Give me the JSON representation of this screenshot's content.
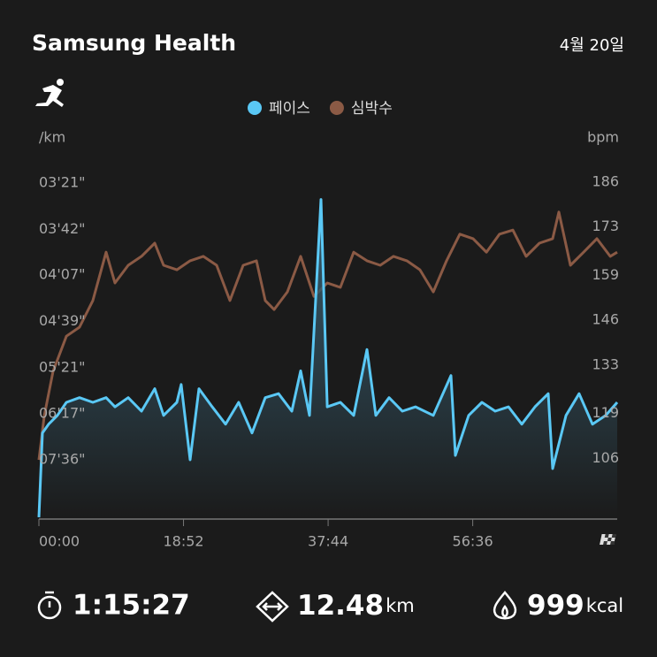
{
  "header": {
    "title": "Samsung Health",
    "date": "4월 20일"
  },
  "chart_data": {
    "type": "line",
    "y_label": "/km",
    "y2_label": "bpm",
    "xlim": [
      0,
      4527
    ],
    "xticks": [
      {
        "value": 0,
        "label": "00:00"
      },
      {
        "value": 1132,
        "label": "18:52"
      },
      {
        "value": 2264,
        "label": "37:44"
      },
      {
        "value": 3396,
        "label": "56:36"
      }
    ],
    "ylim": [
      619,
      184
    ],
    "y_scale": "reciprocal",
    "yticks": [
      {
        "value": 201,
        "label": "03'21\""
      },
      {
        "value": 222,
        "label": "03'42\""
      },
      {
        "value": 247,
        "label": "04'07\""
      },
      {
        "value": 279,
        "label": "04'39\""
      },
      {
        "value": 321,
        "label": "05'21\""
      },
      {
        "value": 377,
        "label": "06'17\""
      },
      {
        "value": 456,
        "label": "07'36\""
      }
    ],
    "y2lim": [
      89,
      199
    ],
    "y2ticks": [
      186,
      173,
      159,
      146,
      133,
      119,
      106
    ],
    "series": [
      {
        "name": "페이스",
        "color": "#5ac8f5",
        "fill": true,
        "x": [
          0,
          28,
          76,
          145,
          215,
          318,
          422,
          526,
          595,
          699,
          803,
          907,
          976,
          1080,
          1114,
          1184,
          1253,
          1357,
          1461,
          1564,
          1668,
          1772,
          1876,
          1980,
          2049,
          2118,
          2208,
          2257,
          2360,
          2464,
          2568,
          2637,
          2741,
          2845,
          2949,
          3087,
          3226,
          3260,
          3364,
          3468,
          3572,
          3676,
          3780,
          3883,
          3987,
          4022,
          4126,
          4229,
          4333,
          4437,
          4527
        ],
        "values": [
          619,
          406,
          392,
          379,
          361,
          355,
          361,
          355,
          367,
          355,
          373,
          344,
          379,
          361,
          339,
          456,
          344,
          367,
          392,
          361,
          406,
          355,
          350,
          373,
          324,
          379,
          208,
          367,
          361,
          379,
          303,
          379,
          355,
          373,
          367,
          379,
          329,
          447,
          379,
          361,
          373,
          367,
          392,
          367,
          350,
          475,
          379,
          350,
          392,
          379,
          361
        ]
      },
      {
        "name": "심박수",
        "color": "#8b5a45",
        "axis": "y2",
        "x": [
          0,
          42,
          111,
          215,
          318,
          422,
          526,
          595,
          699,
          803,
          907,
          976,
          1080,
          1184,
          1287,
          1391,
          1495,
          1599,
          1703,
          1772,
          1841,
          1945,
          2049,
          2153,
          2257,
          2360,
          2464,
          2568,
          2672,
          2776,
          2880,
          2983,
          3087,
          3191,
          3295,
          3399,
          3503,
          3606,
          3710,
          3814,
          3918,
          4022,
          4070,
          4161,
          4264,
          4368,
          4472,
          4527
        ],
        "values": [
          105.6,
          118.4,
          131.2,
          141.4,
          144.0,
          151.7,
          165.7,
          156.8,
          161.9,
          164.5,
          168.3,
          161.9,
          160.6,
          163.2,
          164.5,
          161.9,
          151.7,
          161.9,
          163.2,
          151.7,
          149.1,
          154.2,
          164.5,
          152.9,
          156.8,
          155.5,
          165.7,
          163.2,
          161.9,
          164.5,
          163.2,
          160.6,
          154.2,
          163.2,
          170.9,
          169.6,
          165.7,
          170.9,
          172.1,
          164.5,
          168.3,
          169.6,
          177.3,
          161.9,
          165.7,
          169.6,
          164.5,
          165.7
        ]
      }
    ]
  },
  "stats": [
    {
      "value": "1:15:27"
    },
    {
      "value": 12.48,
      "unit": "km"
    },
    {
      "value": 999,
      "unit": "kcal"
    }
  ]
}
